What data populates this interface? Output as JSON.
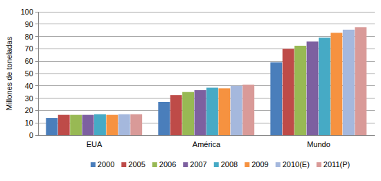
{
  "chart_data": {
    "type": "bar",
    "y_label": "Millones de toneladas",
    "categories": [
      "EUA",
      "América",
      "Mundo"
    ],
    "series": [
      {
        "name": "2000",
        "color": "#4a7ebb",
        "values": [
          14,
          27,
          59
        ]
      },
      {
        "name": "2005",
        "color": "#be4b48",
        "values": [
          16.5,
          32.5,
          70
        ]
      },
      {
        "name": "2006",
        "color": "#98b954",
        "values": [
          16.5,
          35,
          72.5
        ]
      },
      {
        "name": "2007",
        "color": "#7d60a0",
        "values": [
          16.5,
          36.5,
          76
        ]
      },
      {
        "name": "2008",
        "color": "#46aac5",
        "values": [
          17,
          38.5,
          79
        ]
      },
      {
        "name": "2009",
        "color": "#f69240",
        "values": [
          16.5,
          38,
          83
        ]
      },
      {
        "name": "2010(E)",
        "color": "#a5b8dd",
        "values": [
          17,
          40,
          85.5
        ]
      },
      {
        "name": "2011(P)",
        "color": "#d99a98",
        "values": [
          17,
          41,
          87.5
        ]
      }
    ],
    "ylim": [
      0,
      100
    ],
    "yticks": [
      0,
      10,
      20,
      30,
      40,
      50,
      60,
      70,
      80,
      90,
      100
    ],
    "grid": true,
    "legend": "bottom"
  }
}
